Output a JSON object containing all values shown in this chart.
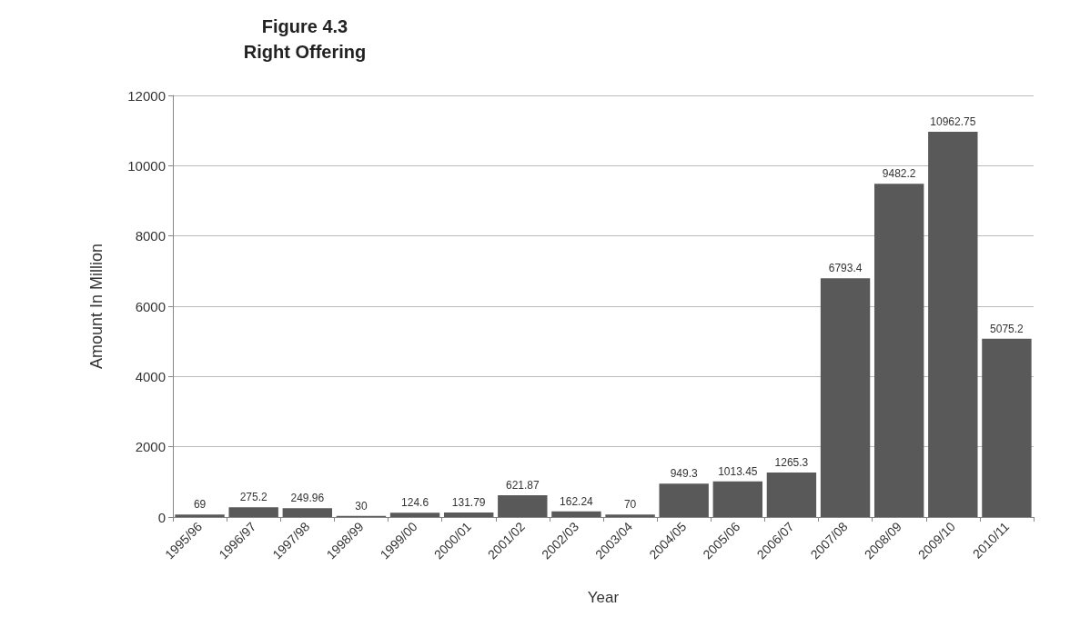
{
  "chart_data": {
    "type": "bar",
    "title": "Figure 4.3\nRight Offering",
    "xlabel": "Year",
    "ylabel": "Amount In Million",
    "categories": [
      "1995/96",
      "1996/97",
      "1997/98",
      "1998/99",
      "1999/00",
      "2000/01",
      "2001/02",
      "2002/03",
      "2003/04",
      "2004/05",
      "2005/06",
      "2006/07",
      "2007/08",
      "2008/09",
      "2009/10",
      "2010/11"
    ],
    "values": [
      69,
      275.2,
      249.96,
      30,
      124.6,
      131.79,
      621.87,
      162.24,
      70,
      949.3,
      1013.45,
      1265.3,
      6793.4,
      9482.2,
      10962.75,
      5075.2
    ],
    "color": "#595959",
    "ylim": [
      0,
      12000
    ],
    "yticks": [
      0,
      2000,
      4000,
      6000,
      8000,
      10000,
      12000
    ],
    "grid": "y",
    "data_labels": true
  }
}
